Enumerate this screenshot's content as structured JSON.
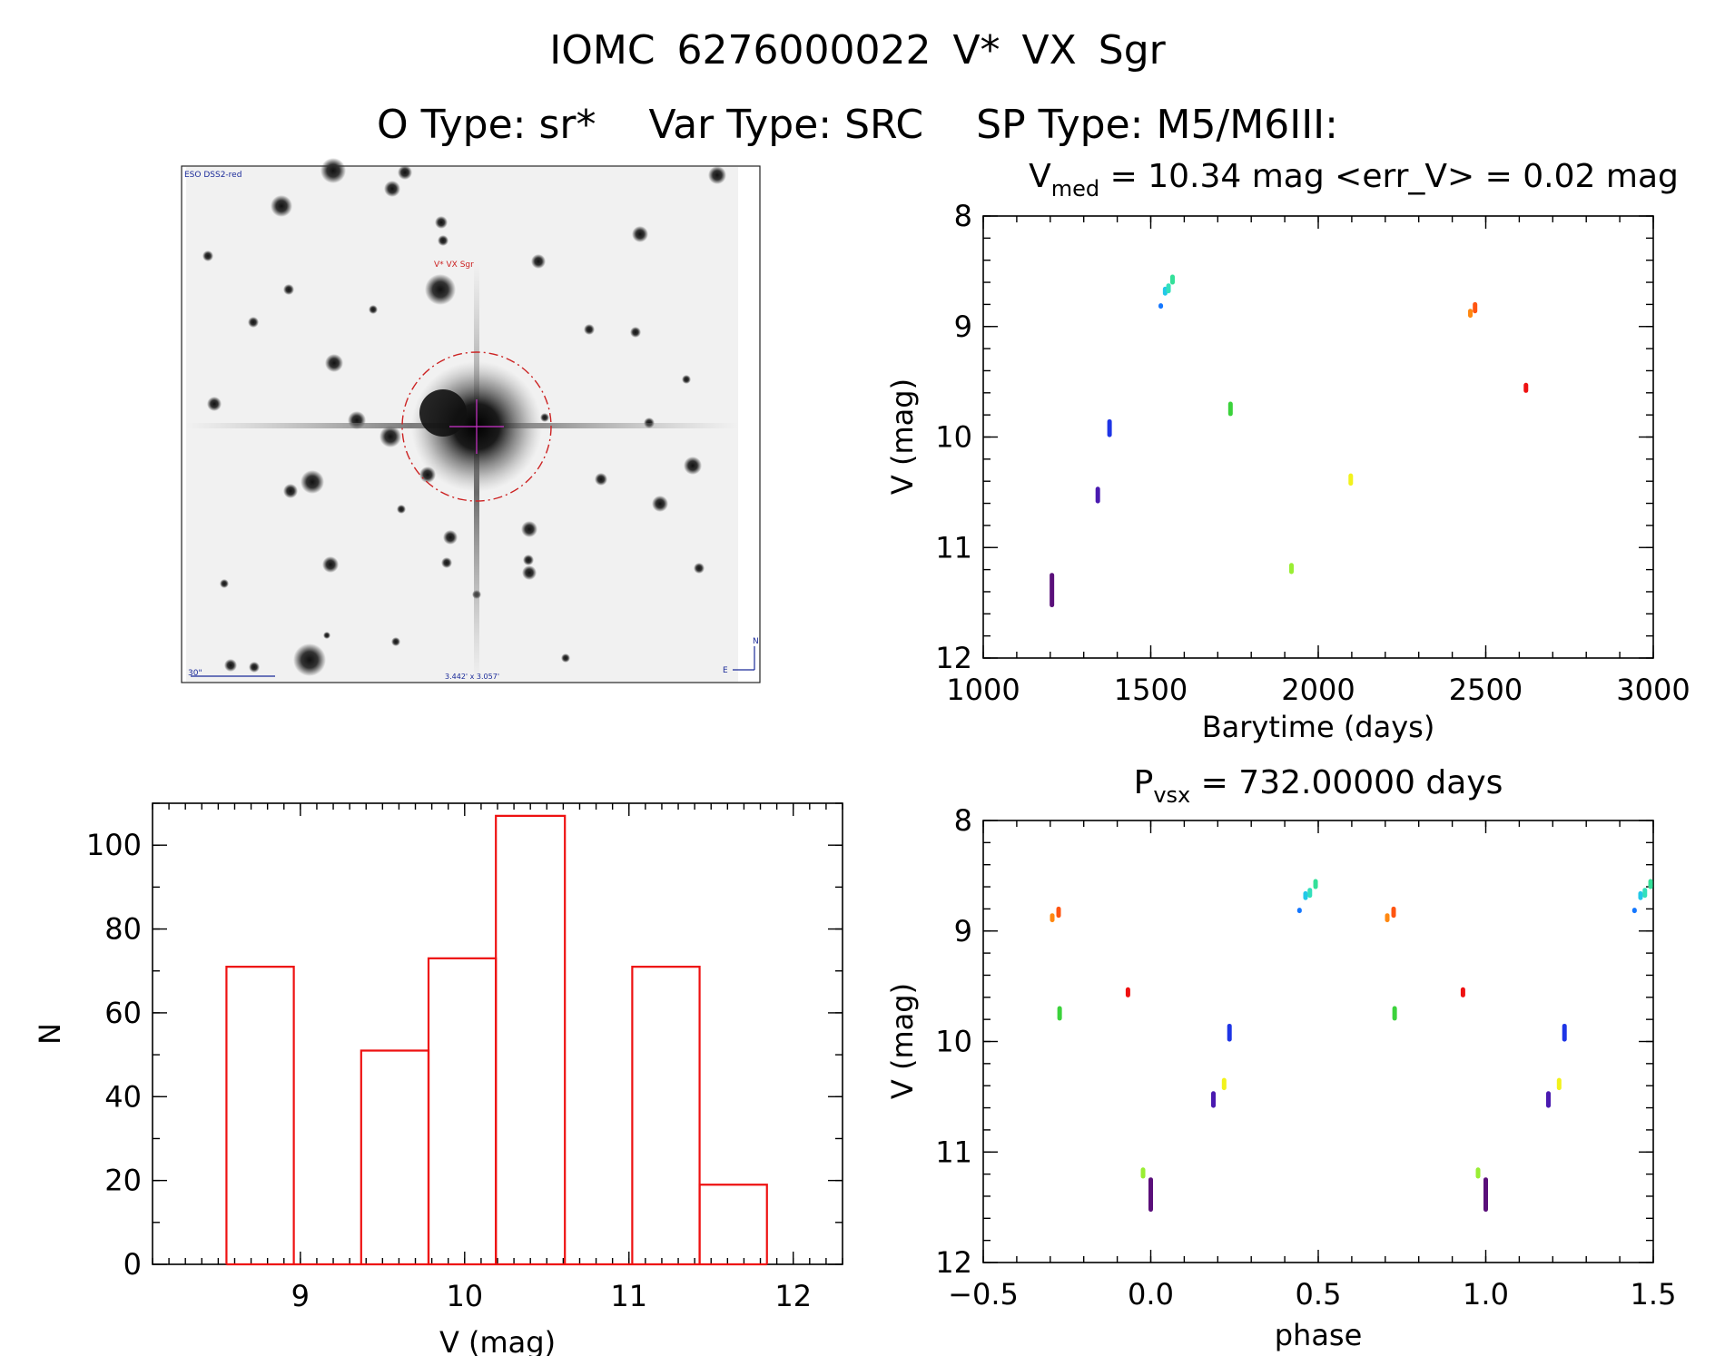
{
  "header": {
    "id_line": "IOMC 6276000022   V* VX Sgr",
    "o_type": "O Type: sr*",
    "var_type": "Var Type: SRC",
    "sp_type": "SP Type: M5/M6III:"
  },
  "finder": {
    "survey_label": "ESO DSS2-red",
    "target_label": "V* VX Sgr",
    "scale_label": "30\"",
    "fov_label": "3.442' x 3.057'",
    "north_label": "N",
    "east_label": "E",
    "colors": {
      "circle": "#cc2222",
      "crosshair": "#cc33cc",
      "annot": "#1a2a99"
    }
  },
  "chart_data": [
    {
      "id": "lightcurve",
      "type": "scatter",
      "title": "V_med = 10.34 mag <err_V> = 0.02 mag",
      "title_parts": {
        "v": "V",
        "sub": "med",
        "rest": " = 10.34 mag <err_V> = 0.02 mag"
      },
      "xlabel": "Barytime (days)",
      "ylabel": "V (mag)",
      "xlim": [
        1000,
        3000
      ],
      "ylim": [
        12,
        8
      ],
      "y_inverted": true,
      "xticks": [
        1000,
        1500,
        2000,
        2500,
        3000
      ],
      "yticks": [
        8,
        9,
        10,
        11,
        12
      ],
      "groups": [
        {
          "x": 1205,
          "y": [
            11.25,
            11.52
          ],
          "color": "#5a0f7a"
        },
        {
          "x": 1342,
          "y": [
            10.47,
            10.58
          ],
          "color": "#4a1ab0"
        },
        {
          "x": 1377,
          "y": [
            9.86,
            9.98
          ],
          "color": "#1e35e6"
        },
        {
          "x": 1530,
          "y": [
            8.81,
            8.81
          ],
          "color": "#1477ff"
        },
        {
          "x": 1543,
          "y": [
            8.66,
            8.7
          ],
          "color": "#22c8e8"
        },
        {
          "x": 1553,
          "y": [
            8.63,
            8.68
          ],
          "color": "#33e0bb"
        },
        {
          "x": 1565,
          "y": [
            8.55,
            8.6
          ],
          "color": "#33e099"
        },
        {
          "x": 1738,
          "y": [
            9.7,
            9.79
          ],
          "color": "#3bd23b"
        },
        {
          "x": 1920,
          "y": [
            11.16,
            11.22
          ],
          "color": "#99ee33"
        },
        {
          "x": 2097,
          "y": [
            10.35,
            10.42
          ],
          "color": "#f2f21c"
        },
        {
          "x": 2454,
          "y": [
            8.86,
            8.9
          ],
          "color": "#ff8811"
        },
        {
          "x": 2468,
          "y": [
            8.8,
            8.86
          ],
          "color": "#ff5511"
        },
        {
          "x": 2620,
          "y": [
            9.53,
            9.58
          ],
          "color": "#ee1111"
        }
      ]
    },
    {
      "id": "phased",
      "type": "scatter",
      "title": "P_vsx = 732.00000 days",
      "title_parts": {
        "v": "P",
        "sub": "vsx",
        "rest": " = 732.00000 days"
      },
      "xlabel": "phase",
      "ylabel": "V (mag)",
      "xlim": [
        -0.5,
        1.5
      ],
      "ylim": [
        12,
        8
      ],
      "y_inverted": true,
      "xticks": [
        -0.5,
        0.0,
        0.5,
        1.0,
        1.5
      ],
      "xtick_labels": [
        "−0.5",
        "0.0",
        "0.5",
        "1.0",
        "1.5"
      ],
      "yticks": [
        8,
        9,
        10,
        11,
        12
      ],
      "groups": [
        {
          "x": 0.0,
          "y": [
            11.25,
            11.52
          ],
          "color": "#5a0f7a"
        },
        {
          "x": 0.187,
          "y": [
            10.47,
            10.58
          ],
          "color": "#4a1ab0"
        },
        {
          "x": 0.235,
          "y": [
            9.86,
            9.98
          ],
          "color": "#1e35e6"
        },
        {
          "x": 0.444,
          "y": [
            8.81,
            8.81
          ],
          "color": "#1477ff"
        },
        {
          "x": 0.462,
          "y": [
            8.66,
            8.7
          ],
          "color": "#22c8e8"
        },
        {
          "x": 0.475,
          "y": [
            8.63,
            8.68
          ],
          "color": "#33e0bb"
        },
        {
          "x": 0.492,
          "y": [
            8.55,
            8.6
          ],
          "color": "#33e099"
        },
        {
          "x": 0.728,
          "y": [
            9.7,
            9.79
          ],
          "color": "#3bd23b"
        },
        {
          "x": 0.977,
          "y": [
            11.16,
            11.22
          ],
          "color": "#99ee33"
        },
        {
          "x": 0.219,
          "y": [
            10.35,
            10.42
          ],
          "color": "#f2f21c"
        },
        {
          "x": 0.706,
          "y": [
            8.86,
            8.9
          ],
          "color": "#ff8811"
        },
        {
          "x": 0.725,
          "y": [
            8.8,
            8.86
          ],
          "color": "#ff5511"
        },
        {
          "x": 0.932,
          "y": [
            9.53,
            9.58
          ],
          "color": "#ee1111"
        }
      ]
    },
    {
      "id": "histogram",
      "type": "bar",
      "xlabel": "V (mag)",
      "ylabel": "N",
      "xlim": [
        8.1,
        12.3
      ],
      "ylim": [
        0,
        110
      ],
      "xticks": [
        9,
        10,
        11,
        12
      ],
      "yticks": [
        0,
        20,
        40,
        60,
        80,
        100
      ],
      "bar_color": "#ee1111",
      "bins": [
        {
          "lo": 8.55,
          "hi": 8.96,
          "n": 71
        },
        {
          "lo": 9.37,
          "hi": 9.78,
          "n": 51
        },
        {
          "lo": 9.78,
          "hi": 10.19,
          "n": 73
        },
        {
          "lo": 10.19,
          "hi": 10.61,
          "n": 107
        },
        {
          "lo": 11.02,
          "hi": 11.43,
          "n": 71
        },
        {
          "lo": 11.43,
          "hi": 11.84,
          "n": 19
        }
      ]
    }
  ]
}
